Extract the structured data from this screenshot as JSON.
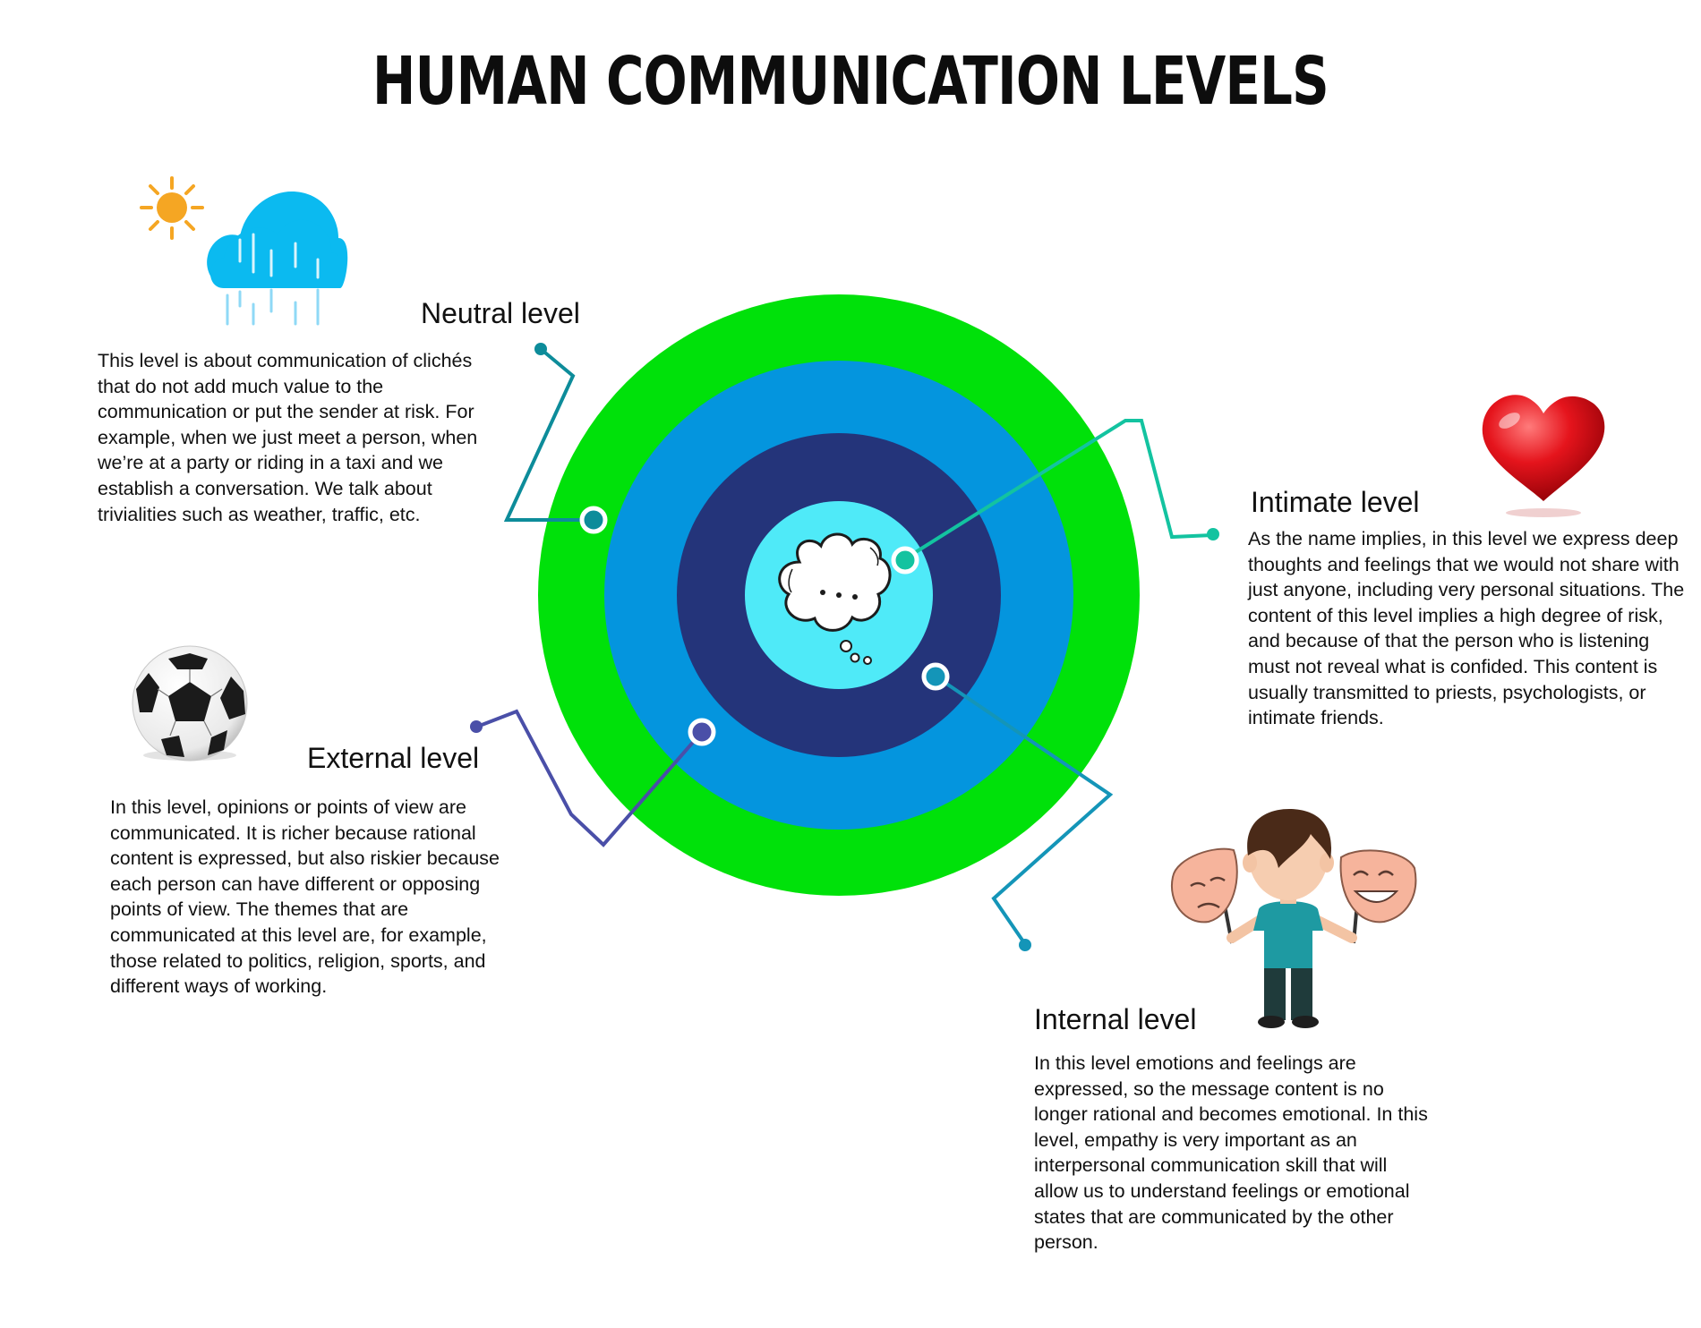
{
  "title": "HUMAN COMMUNICATION LEVELS",
  "center_icon": "thought-bubble-icon",
  "colors": {
    "outer_ring": "#00e10a",
    "second_ring": "#0495de",
    "third_ring": "#24347a",
    "core": "#4feaf8",
    "neutral_connector": "#0d8c9a",
    "intimate_connector": "#13c3a0",
    "external_connector": "#4a4fa8",
    "internal_connector": "#1495b8"
  },
  "levels": [
    {
      "id": "neutral",
      "heading": "Neutral level",
      "icon": "sun-rain-cloud-icon",
      "description": "This level is about communication of clichés that do not add much value to the communication or put the sender at risk. For example, when we just meet a person, when we’re at a party or riding in a taxi and we establish a conversation. We talk about trivialities such as weather, traffic, etc."
    },
    {
      "id": "intimate",
      "heading": "Intimate level",
      "icon": "heart-icon",
      "description": "As the name implies, in this level we express deep thoughts and feelings that we would not share with just anyone, including very personal situations. The content of this level implies a high degree of risk, and because of that the person who is listening must not reveal what is confided. This content is usually transmitted to priests, psychologists, or intimate friends."
    },
    {
      "id": "external",
      "heading": "External level",
      "icon": "soccer-ball-icon",
      "description": "In this level, opinions or points of view are communicated. It is richer because rational content is expressed, but also riskier because each person can have different or opposing points of view. The themes that are communicated at this level are, for example, those related to politics, religion, sports, and different ways of working."
    },
    {
      "id": "internal",
      "heading": "Internal level",
      "icon": "boy-with-masks-icon",
      "description": "In this level emotions and feelings are expressed, so the message content is no longer rational and becomes emotional. In this level, empathy is very important as an interpersonal communication skill that will allow us to understand feelings or emotional states that are communicated by the other person."
    }
  ]
}
